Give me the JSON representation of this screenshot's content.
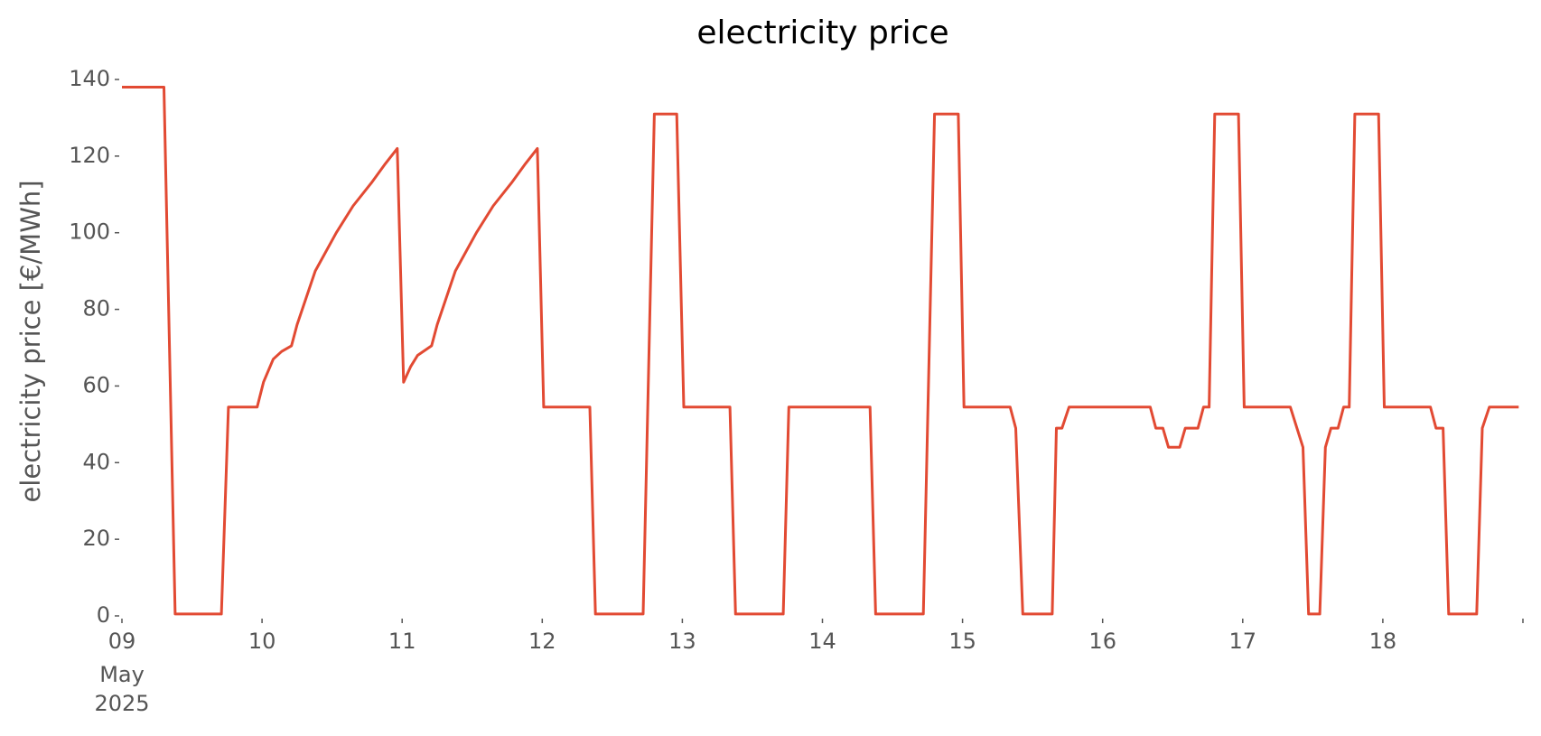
{
  "chart_data": {
    "type": "line",
    "title": "electricity price",
    "ylabel": "electricity price [€/MWh]",
    "color": "#e24a33",
    "grid": false,
    "x": [
      9.0,
      9.3,
      9.38,
      9.71,
      9.76,
      9.965,
      10.01,
      10.08,
      10.14,
      10.21,
      10.25,
      10.38,
      10.53,
      10.65,
      10.78,
      10.88,
      10.965,
      11.01,
      11.06,
      11.11,
      11.21,
      11.25,
      11.38,
      11.53,
      11.65,
      11.78,
      11.88,
      11.965,
      12.01,
      12.34,
      12.38,
      12.72,
      12.8,
      12.96,
      13.01,
      13.34,
      13.38,
      13.72,
      13.76,
      14.34,
      14.38,
      14.72,
      14.8,
      14.97,
      15.01,
      15.34,
      15.38,
      15.43,
      15.64,
      15.67,
      15.71,
      15.76,
      16.34,
      16.38,
      16.43,
      16.47,
      16.55,
      16.59,
      16.68,
      16.72,
      16.76,
      16.8,
      16.97,
      17.01,
      17.34,
      17.43,
      17.47,
      17.55,
      17.59,
      17.63,
      17.68,
      17.72,
      17.76,
      17.8,
      17.97,
      18.01,
      18.34,
      18.38,
      18.43,
      18.47,
      18.67,
      18.71,
      18.76,
      18.97
    ],
    "values": [
      138,
      138,
      0.5,
      0.5,
      54.5,
      54.5,
      61,
      67,
      69,
      70.5,
      76,
      90,
      100,
      107,
      113,
      118,
      122,
      61,
      65,
      68,
      70.5,
      76,
      90,
      100,
      107,
      113,
      118,
      122,
      54.5,
      54.5,
      0.5,
      0.5,
      131,
      131,
      54.5,
      54.5,
      0.5,
      0.5,
      54.5,
      54.5,
      0.5,
      0.5,
      131,
      131,
      54.5,
      54.5,
      49,
      0.5,
      0.5,
      49,
      49,
      54.5,
      54.5,
      49,
      49,
      44,
      44,
      49,
      49,
      54.5,
      54.5,
      131,
      131,
      54.5,
      54.5,
      44,
      0.5,
      0.5,
      44,
      49,
      49,
      54.5,
      54.5,
      131,
      131,
      54.5,
      54.5,
      49,
      49,
      0.5,
      0.5,
      49,
      54.5,
      54.5
    ],
    "xlim": [
      9,
      19
    ],
    "xticks": [
      {
        "value": 9,
        "label": "09"
      },
      10,
      11,
      12,
      13,
      14,
      15,
      16,
      17,
      18
    ],
    "x_tick_sublabels": [
      "May",
      "2025"
    ],
    "ylim": [
      0,
      140
    ],
    "yticks": [
      0,
      20,
      40,
      60,
      80,
      100,
      120,
      140
    ]
  }
}
